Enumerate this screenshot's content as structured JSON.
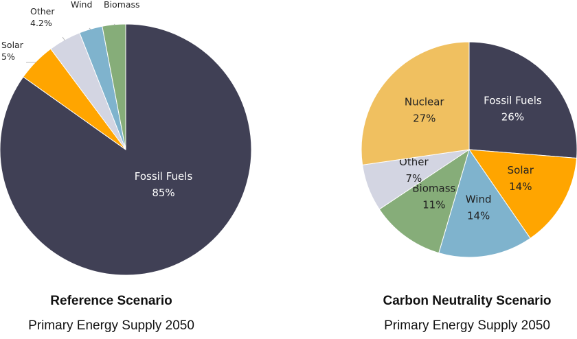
{
  "chart_data": [
    {
      "type": "pie",
      "title": "Reference Scenario",
      "subtitle": "Primary Energy Supply 2050",
      "slices": [
        {
          "label": "Fossil Fuels",
          "value": 85,
          "display": "85%",
          "color": "#404055",
          "text_color": "#ffffff"
        },
        {
          "label": "Solar",
          "value": 5,
          "display": "5%",
          "color": "#FFA500",
          "text_color": "#222222"
        },
        {
          "label": "Other",
          "value": 4.2,
          "display": "4.2%",
          "color": "#D3D5E2",
          "text_color": "#222222"
        },
        {
          "label": "Wind",
          "value": 3,
          "display": "",
          "color": "#7FB3CD",
          "text_color": "#222222"
        },
        {
          "label": "Biomass",
          "value": 3,
          "display": "",
          "color": "#86AD79",
          "text_color": "#222222"
        }
      ]
    },
    {
      "type": "pie",
      "title": "Carbon Neutrality Scenario",
      "subtitle": "Primary Energy Supply 2050",
      "slices": [
        {
          "label": "Fossil Fuels",
          "value": 26,
          "display": "26%",
          "color": "#404055",
          "text_color": "#ffffff"
        },
        {
          "label": "Solar",
          "value": 14,
          "display": "14%",
          "color": "#FFA500",
          "text_color": "#222222"
        },
        {
          "label": "Wind",
          "value": 14,
          "display": "14%",
          "color": "#7FB3CD",
          "text_color": "#222222"
        },
        {
          "label": "Biomass",
          "value": 11,
          "display": "11%",
          "color": "#86AD79",
          "text_color": "#222222"
        },
        {
          "label": "Other",
          "value": 7,
          "display": "7%",
          "color": "#D3D5E2",
          "text_color": "#222222"
        },
        {
          "label": "Nuclear",
          "value": 27,
          "display": "27%",
          "color": "#F0C060",
          "text_color": "#222222"
        }
      ]
    }
  ]
}
